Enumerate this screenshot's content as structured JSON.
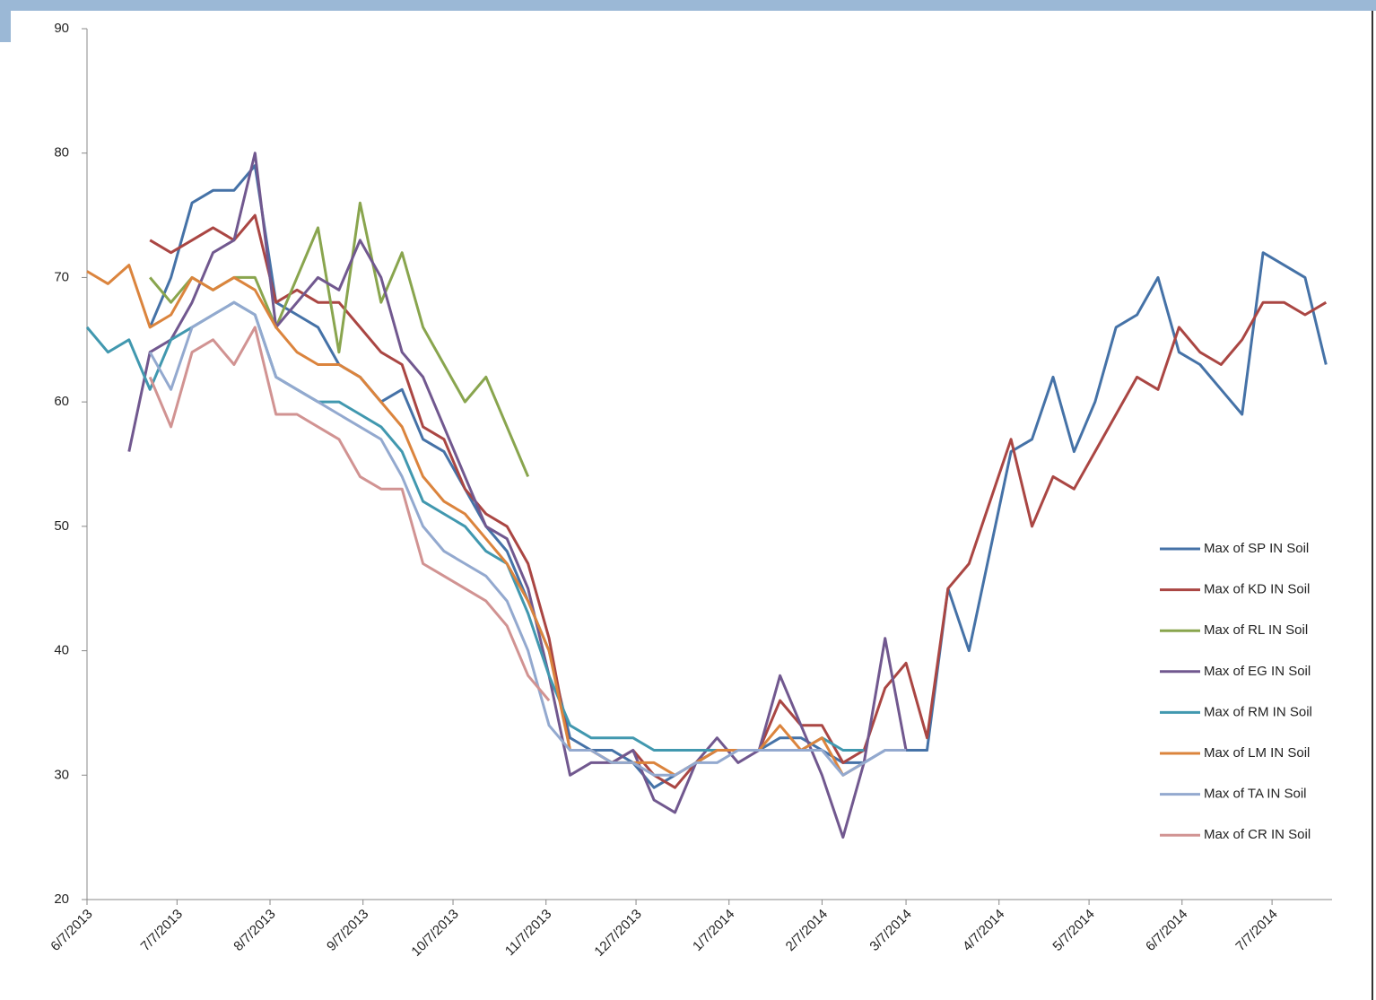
{
  "chart_data": {
    "type": "line",
    "x": [
      "6/7/2013",
      "6/14/2013",
      "6/21/2013",
      "6/28/2013",
      "7/5/2013",
      "7/12/2013",
      "7/19/2013",
      "7/26/2013",
      "8/2/2013",
      "8/9/2013",
      "8/16/2013",
      "8/23/2013",
      "8/30/2013",
      "9/6/2013",
      "9/13/2013",
      "9/20/2013",
      "9/27/2013",
      "10/4/2013",
      "10/11/2013",
      "10/18/2013",
      "10/25/2013",
      "11/1/2013",
      "11/8/2013",
      "11/15/2013",
      "11/22/2013",
      "11/29/2013",
      "12/6/2013",
      "12/13/2013",
      "12/20/2013",
      "12/27/2013",
      "1/3/2014",
      "1/10/2014",
      "1/17/2014",
      "1/24/2014",
      "1/31/2014",
      "2/7/2014",
      "2/14/2014",
      "2/21/2014",
      "2/28/2014",
      "3/7/2014",
      "3/14/2014",
      "3/21/2014",
      "3/28/2014",
      "4/4/2014",
      "4/11/2014",
      "4/18/2014",
      "4/25/2014",
      "5/2/2014",
      "5/9/2014",
      "5/16/2014",
      "5/23/2014",
      "5/30/2014",
      "6/6/2014",
      "6/13/2014",
      "6/20/2014",
      "6/27/2014",
      "7/4/2014",
      "7/11/2014",
      "7/18/2014",
      "7/25/2014"
    ],
    "xlim": [
      "6/7/2013",
      "7/27/2014"
    ],
    "xticks": [
      "6/7/2013",
      "7/7/2013",
      "8/7/2013",
      "9/7/2013",
      "10/7/2013",
      "11/7/2013",
      "12/7/2013",
      "1/7/2014",
      "2/7/2014",
      "3/7/2014",
      "4/7/2014",
      "5/7/2014",
      "6/7/2014",
      "7/7/2014"
    ],
    "ylim": [
      20,
      90
    ],
    "yticks": [
      20,
      30,
      40,
      50,
      60,
      70,
      80,
      90
    ],
    "legend": "right",
    "series": [
      {
        "name": "Max of SP IN Soil",
        "color": "#4572a7",
        "values": [
          null,
          null,
          null,
          66,
          70,
          76,
          77,
          77,
          79,
          68,
          67,
          66,
          63,
          62,
          60,
          61,
          57,
          56,
          53,
          50,
          48,
          44,
          40,
          33,
          32,
          32,
          31,
          29,
          30,
          31,
          32,
          32,
          32,
          33,
          33,
          32,
          31,
          31,
          32,
          32,
          32,
          45,
          40,
          48,
          56,
          57,
          62,
          56,
          60,
          66,
          67,
          70,
          64,
          63,
          61,
          59,
          72,
          71,
          70,
          63
        ]
      },
      {
        "name": "Max of KD IN Soil",
        "color": "#aa4643",
        "values": [
          null,
          null,
          null,
          73,
          72,
          73,
          74,
          73,
          75,
          68,
          69,
          68,
          68,
          66,
          64,
          63,
          58,
          57,
          53,
          51,
          50,
          47,
          41,
          32,
          32,
          31,
          32,
          30,
          29,
          31,
          32,
          32,
          32,
          36,
          34,
          34,
          31,
          32,
          37,
          39,
          33,
          45,
          47,
          52,
          57,
          50,
          54,
          53,
          56,
          59,
          62,
          61,
          66,
          64,
          63,
          65,
          68,
          68,
          67,
          68
        ]
      },
      {
        "name": "Max of RL IN Soil",
        "color": "#89a54e",
        "values": [
          null,
          null,
          null,
          70,
          68,
          70,
          69,
          70,
          70,
          66,
          70,
          74,
          64,
          76,
          68,
          72,
          66,
          63,
          60,
          62,
          58,
          54,
          null,
          null,
          null,
          null,
          null,
          null,
          null,
          null,
          null,
          null,
          null,
          null,
          null,
          null,
          null,
          null,
          null,
          null,
          null,
          null,
          null,
          null,
          null,
          null,
          null,
          null,
          null,
          null,
          null,
          null,
          null,
          null,
          null,
          null,
          null,
          null,
          null,
          null
        ]
      },
      {
        "name": "Max of EG IN Soil",
        "color": "#71588f",
        "values": [
          null,
          null,
          56,
          64,
          65,
          68,
          72,
          73,
          80,
          66,
          68,
          70,
          69,
          73,
          70,
          64,
          62,
          58,
          54,
          50,
          49,
          45,
          38,
          30,
          31,
          31,
          32,
          28,
          27,
          31,
          33,
          31,
          32,
          38,
          34,
          30,
          25,
          31,
          41,
          32,
          null,
          null,
          null,
          null,
          null,
          null,
          null,
          null,
          null,
          null,
          null,
          null,
          null,
          null,
          null,
          null,
          null,
          null,
          null,
          null
        ]
      },
      {
        "name": "Max of RM IN Soil",
        "color": "#4198af",
        "values": [
          66,
          64,
          65,
          61,
          65,
          66,
          67,
          68,
          67,
          62,
          61,
          60,
          60,
          59,
          58,
          56,
          52,
          51,
          50,
          48,
          47,
          43,
          38,
          34,
          33,
          33,
          33,
          32,
          32,
          32,
          32,
          32,
          32,
          32,
          32,
          33,
          32,
          32,
          null,
          null,
          null,
          null,
          null,
          null,
          null,
          null,
          null,
          null,
          null,
          null,
          null,
          null,
          null,
          null,
          null,
          null,
          null,
          null,
          null,
          null
        ]
      },
      {
        "name": "Max of LM IN Soil",
        "color": "#db843d",
        "values": [
          70.5,
          69.5,
          71,
          66,
          67,
          70,
          69,
          70,
          69,
          66,
          64,
          63,
          63,
          62,
          60,
          58,
          54,
          52,
          51,
          49,
          47,
          44,
          40,
          32,
          32,
          31,
          31,
          31,
          30,
          31,
          32,
          32,
          32,
          34,
          32,
          33,
          30,
          31,
          null,
          null,
          null,
          null,
          null,
          null,
          null,
          null,
          null,
          null,
          null,
          null,
          null,
          null,
          null,
          null,
          null,
          null,
          null,
          null,
          null,
          null
        ]
      },
      {
        "name": "Max of TA IN Soil",
        "color": "#93a9cf",
        "values": [
          null,
          null,
          null,
          64,
          61,
          66,
          67,
          68,
          67,
          62,
          61,
          60,
          59,
          58,
          57,
          54,
          50,
          48,
          47,
          46,
          44,
          40,
          34,
          32,
          32,
          31,
          31,
          30,
          30,
          31,
          31,
          32,
          32,
          32,
          32,
          32,
          30,
          31,
          32,
          32,
          null,
          null,
          null,
          null,
          null,
          null,
          null,
          null,
          null,
          null,
          null,
          null,
          null,
          null,
          null,
          null,
          null,
          null,
          null,
          null
        ]
      },
      {
        "name": "Max of CR IN Soil",
        "color": "#d19392",
        "values": [
          null,
          null,
          null,
          62,
          58,
          64,
          65,
          63,
          66,
          59,
          59,
          58,
          57,
          54,
          53,
          53,
          47,
          46,
          45,
          44,
          42,
          38,
          36,
          null,
          null,
          null,
          null,
          null,
          null,
          null,
          null,
          null,
          null,
          null,
          null,
          null,
          null,
          null,
          null,
          null,
          null,
          null,
          null,
          null,
          null,
          null,
          null,
          null,
          null,
          null,
          null,
          null,
          null,
          null,
          null,
          null,
          null,
          null,
          null,
          null
        ]
      }
    ]
  }
}
